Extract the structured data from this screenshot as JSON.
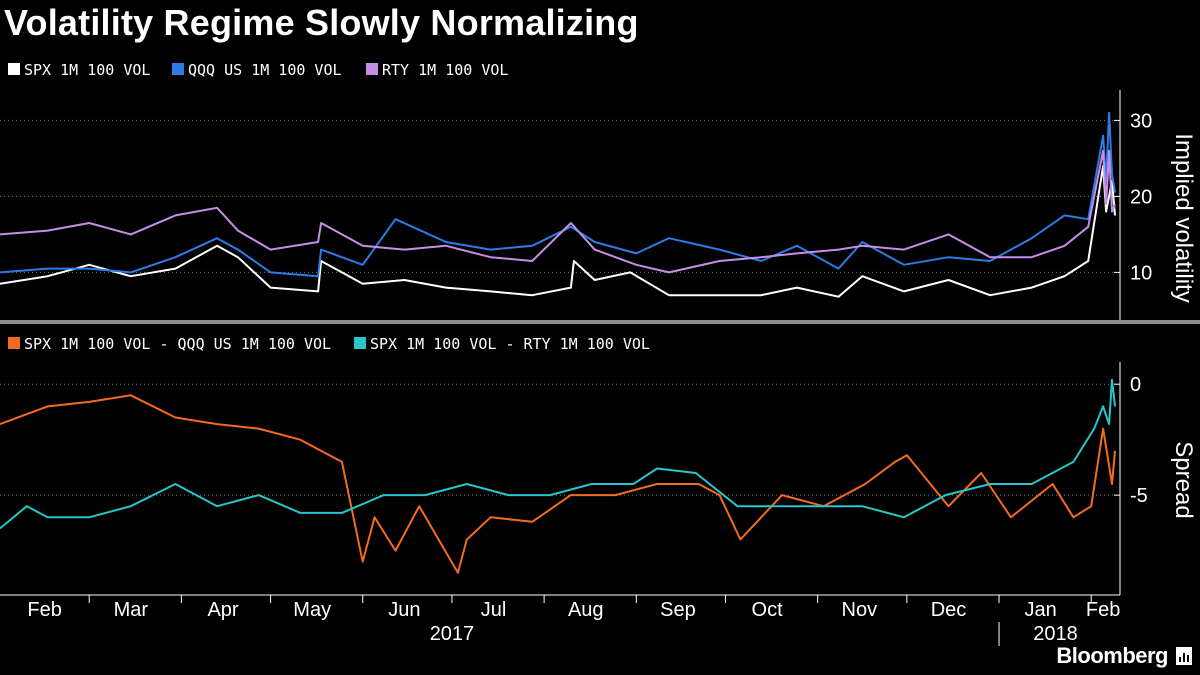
{
  "title": "Volatility Regime Slowly Normalizing",
  "brand": "Bloomberg",
  "chart_data": [
    {
      "type": "line",
      "ylabel": "Implied volatility",
      "ylim": [
        4,
        34
      ],
      "yticks": [
        10,
        20,
        30
      ],
      "grid": "horizontal dotted",
      "legend_position": "top-left",
      "x_range": [
        "2017-01-30",
        "2018-02-09"
      ],
      "series": [
        {
          "name": "SPX 1M 100 VOL",
          "color": "#ffffff",
          "x": [
            "2017-01-30",
            "2017-02-15",
            "2017-03-01",
            "2017-03-15",
            "2017-03-30",
            "2017-04-13",
            "2017-04-20",
            "2017-05-01",
            "2017-05-17",
            "2017-05-18",
            "2017-06-01",
            "2017-06-15",
            "2017-06-29",
            "2017-07-14",
            "2017-07-28",
            "2017-08-10",
            "2017-08-11",
            "2017-08-18",
            "2017-08-30",
            "2017-09-12",
            "2017-09-29",
            "2017-10-13",
            "2017-10-25",
            "2017-11-08",
            "2017-11-16",
            "2017-11-30",
            "2017-12-15",
            "2017-12-29",
            "2018-01-12",
            "2018-01-23",
            "2018-01-31",
            "2018-02-05",
            "2018-02-06",
            "2018-02-08",
            "2018-02-09"
          ],
          "values": [
            8.5,
            9.5,
            11,
            9.5,
            10.5,
            13.5,
            12,
            8,
            7.5,
            11.5,
            8.5,
            9,
            8,
            7.5,
            7,
            8,
            11.5,
            9,
            10,
            7,
            7,
            7,
            8,
            6.8,
            9.5,
            7.5,
            9,
            7,
            8,
            9.5,
            11.5,
            24,
            18,
            22,
            17.5
          ]
        },
        {
          "name": "QQQ US 1M 100 VOL",
          "color": "#2e7be6",
          "x": [
            "2017-01-30",
            "2017-02-15",
            "2017-03-01",
            "2017-03-15",
            "2017-03-30",
            "2017-04-13",
            "2017-04-20",
            "2017-05-01",
            "2017-05-17",
            "2017-05-18",
            "2017-06-01",
            "2017-06-12",
            "2017-06-29",
            "2017-07-14",
            "2017-07-28",
            "2017-08-10",
            "2017-08-18",
            "2017-09-01",
            "2017-09-12",
            "2017-09-29",
            "2017-10-13",
            "2017-10-25",
            "2017-11-08",
            "2017-11-16",
            "2017-11-30",
            "2017-12-15",
            "2017-12-29",
            "2018-01-12",
            "2018-01-23",
            "2018-01-31",
            "2018-02-05",
            "2018-02-06",
            "2018-02-07",
            "2018-02-08",
            "2018-02-09"
          ],
          "values": [
            10,
            10.5,
            10.5,
            10,
            12,
            14.5,
            13,
            10,
            9.5,
            13,
            11,
            17,
            14,
            13,
            13.5,
            16,
            14,
            12.5,
            14.5,
            13,
            11.5,
            13.5,
            10.5,
            14,
            11,
            12,
            11.5,
            14.5,
            17.5,
            17,
            28,
            22,
            31,
            23,
            20.5
          ]
        },
        {
          "name": "RTY 1M 100 VOL",
          "color": "#c58fe8",
          "x": [
            "2017-01-30",
            "2017-02-15",
            "2017-03-01",
            "2017-03-15",
            "2017-03-30",
            "2017-04-13",
            "2017-04-20",
            "2017-05-01",
            "2017-05-17",
            "2017-05-18",
            "2017-06-01",
            "2017-06-15",
            "2017-06-29",
            "2017-07-14",
            "2017-07-28",
            "2017-08-10",
            "2017-08-18",
            "2017-09-01",
            "2017-09-12",
            "2017-09-29",
            "2017-10-13",
            "2017-10-25",
            "2017-11-08",
            "2017-11-16",
            "2017-11-30",
            "2017-12-15",
            "2017-12-29",
            "2018-01-12",
            "2018-01-23",
            "2018-01-31",
            "2018-02-05",
            "2018-02-06",
            "2018-02-07",
            "2018-02-08",
            "2018-02-09"
          ],
          "values": [
            15,
            15.5,
            16.5,
            15,
            17.5,
            18.5,
            15.5,
            13,
            14,
            16.5,
            13.5,
            13,
            13.5,
            12,
            11.5,
            16.5,
            13,
            11,
            10,
            11.5,
            12,
            12.5,
            13,
            13.5,
            13,
            15,
            12,
            12,
            13.5,
            16,
            26,
            19,
            26,
            18,
            19
          ]
        }
      ]
    },
    {
      "type": "line",
      "ylabel": "Spread",
      "ylim": [
        -9.5,
        1
      ],
      "yticks": [
        0,
        -5
      ],
      "grid": "horizontal dotted",
      "legend_position": "top-left",
      "x_range": [
        "2017-01-30",
        "2018-02-09"
      ],
      "series": [
        {
          "name": "SPX 1M 100 VOL - QQQ US 1M 100 VOL",
          "color": "#f26b1f",
          "x": [
            "2017-01-30",
            "2017-02-15",
            "2017-03-01",
            "2017-03-15",
            "2017-03-30",
            "2017-04-13",
            "2017-04-27",
            "2017-05-11",
            "2017-05-25",
            "2017-06-01",
            "2017-06-05",
            "2017-06-12",
            "2017-06-20",
            "2017-07-03",
            "2017-07-06",
            "2017-07-14",
            "2017-07-28",
            "2017-08-10",
            "2017-08-25",
            "2017-09-08",
            "2017-09-22",
            "2017-09-29",
            "2017-10-06",
            "2017-10-20",
            "2017-11-03",
            "2017-11-17",
            "2017-11-27",
            "2017-12-01",
            "2017-12-15",
            "2017-12-26",
            "2018-01-05",
            "2018-01-19",
            "2018-01-26",
            "2018-02-01",
            "2018-02-05",
            "2018-02-08",
            "2018-02-09"
          ],
          "values": [
            -1.8,
            -1,
            -0.8,
            -0.5,
            -1.5,
            -1.8,
            -2,
            -2.5,
            -3.5,
            -8,
            -6,
            -7.5,
            -5.5,
            -8.5,
            -7,
            -6,
            -6.2,
            -5,
            -5,
            -4.5,
            -4.5,
            -5,
            -7,
            -5,
            -5.5,
            -4.5,
            -3.5,
            -3.2,
            -5.5,
            -4,
            -6,
            -4.5,
            -6,
            -5.5,
            -2,
            -4.5,
            -3
          ]
        },
        {
          "name": "SPX 1M 100 VOL - RTY 1M 100 VOL",
          "color": "#26c6c9",
          "x": [
            "2017-01-30",
            "2017-02-08",
            "2017-02-15",
            "2017-03-01",
            "2017-03-15",
            "2017-03-30",
            "2017-04-13",
            "2017-04-27",
            "2017-05-11",
            "2017-05-25",
            "2017-06-08",
            "2017-06-22",
            "2017-07-06",
            "2017-07-20",
            "2017-08-03",
            "2017-08-17",
            "2017-08-31",
            "2017-09-08",
            "2017-09-21",
            "2017-10-05",
            "2017-10-19",
            "2017-11-02",
            "2017-11-16",
            "2017-11-30",
            "2017-12-14",
            "2017-12-29",
            "2018-01-12",
            "2018-01-26",
            "2018-02-02",
            "2018-02-05",
            "2018-02-07",
            "2018-02-08",
            "2018-02-09"
          ],
          "values": [
            -6.5,
            -5.5,
            -6,
            -6,
            -5.5,
            -4.5,
            -5.5,
            -5,
            -5.8,
            -5.8,
            -5,
            -5,
            -4.5,
            -5,
            -5,
            -4.5,
            -4.5,
            -3.8,
            -4,
            -5.5,
            -5.5,
            -5.5,
            -5.5,
            -6,
            -5,
            -4.5,
            -4.5,
            -3.5,
            -2,
            -1,
            -1.8,
            0.2,
            -1
          ]
        }
      ]
    }
  ],
  "x_axis": {
    "months": [
      {
        "label": "Feb",
        "date": "2017-02-14"
      },
      {
        "label": "Mar",
        "date": "2017-03-15"
      },
      {
        "label": "Apr",
        "date": "2017-04-15"
      },
      {
        "label": "May",
        "date": "2017-05-15"
      },
      {
        "label": "Jun",
        "date": "2017-06-15"
      },
      {
        "label": "Jul",
        "date": "2017-07-15"
      },
      {
        "label": "Aug",
        "date": "2017-08-15"
      },
      {
        "label": "Sep",
        "date": "2017-09-15"
      },
      {
        "label": "Oct",
        "date": "2017-10-15"
      },
      {
        "label": "Nov",
        "date": "2017-11-15"
      },
      {
        "label": "Dec",
        "date": "2017-12-15"
      },
      {
        "label": "Jan",
        "date": "2018-01-15"
      },
      {
        "label": "Feb",
        "date": "2018-02-05"
      }
    ],
    "separators": [
      "2017-03-01",
      "2017-04-01",
      "2017-05-01",
      "2017-06-01",
      "2017-07-01",
      "2017-08-01",
      "2017-09-01",
      "2017-10-01",
      "2017-11-01",
      "2017-12-01",
      "2018-01-01",
      "2018-02-01"
    ],
    "years": [
      {
        "label": "2017",
        "date": "2017-07-01"
      },
      {
        "label": "2018",
        "date": "2018-01-20"
      }
    ],
    "year_divider": "2018-01-01"
  }
}
